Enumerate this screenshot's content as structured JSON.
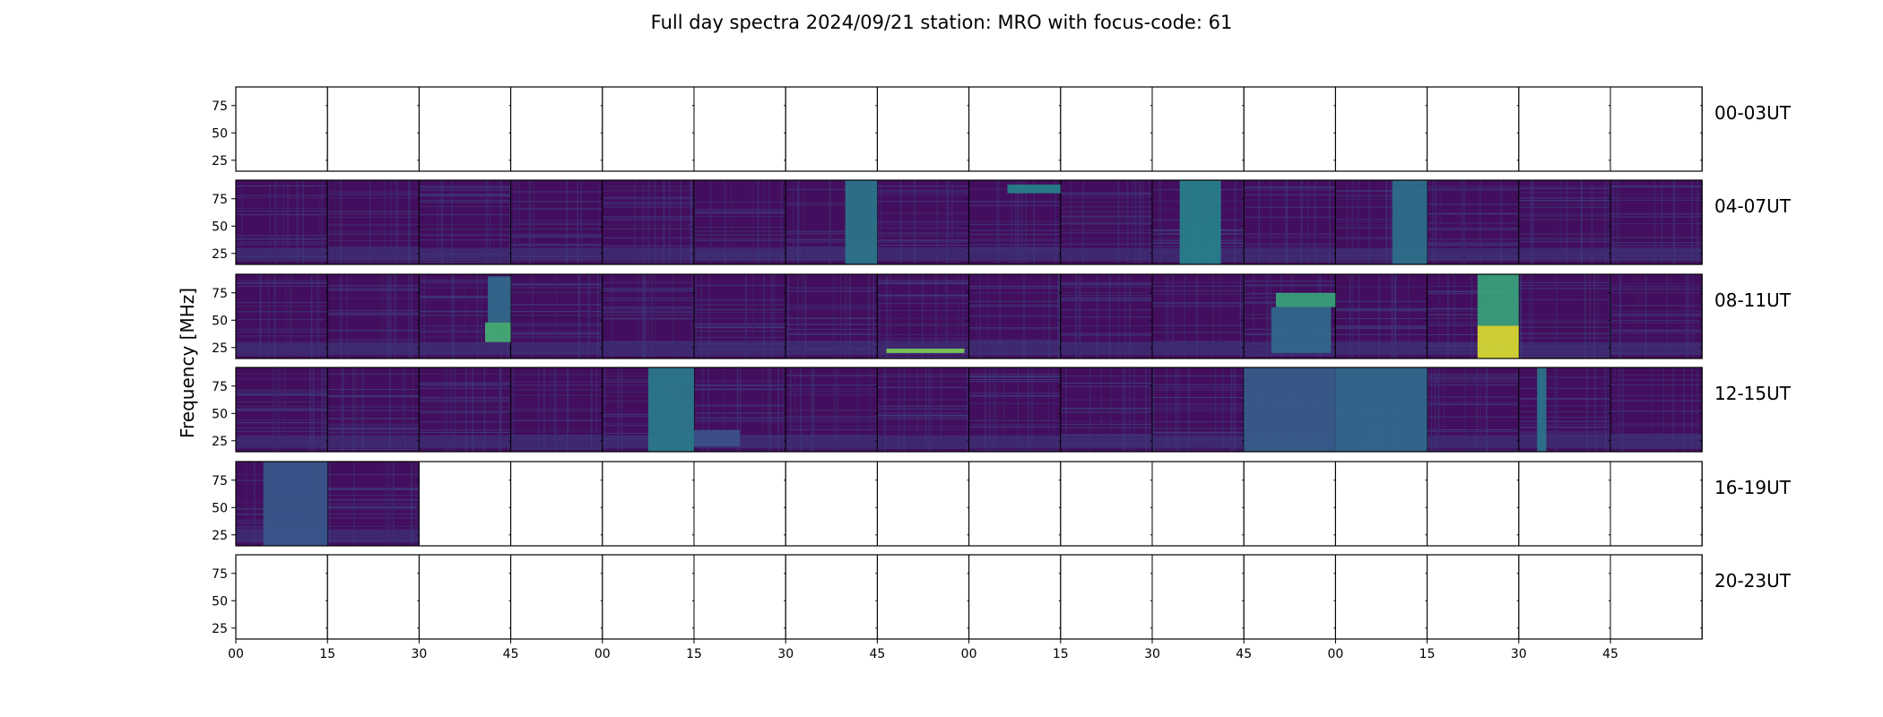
{
  "chart_data": {
    "type": "heatmap",
    "title": "Full day spectra 2024/09/21 station: MRO with focus-code: 61",
    "ylabel": "Frequency [MHz]",
    "yticks": [
      "25",
      "50",
      "75"
    ],
    "ylim": [
      15,
      92
    ],
    "xticks": [
      "00",
      "15",
      "30",
      "45",
      "00",
      "15",
      "30",
      "45",
      "00",
      "15",
      "30",
      "45",
      "00",
      "15",
      "30",
      "45"
    ],
    "panels_per_row": 16,
    "colormap": [
      "#440154",
      "#3b528b",
      "#21908d",
      "#5dc863",
      "#fde725"
    ],
    "rows": [
      {
        "label": "00-03UT",
        "panels": [
          0,
          0,
          0,
          0,
          0,
          0,
          0,
          0,
          0,
          0,
          0,
          0,
          0,
          0,
          0,
          0
        ],
        "features": []
      },
      {
        "label": "04-07UT",
        "panels": [
          1,
          1,
          1,
          1,
          1,
          1,
          1,
          1,
          1,
          1,
          1,
          1,
          1,
          1,
          1,
          1
        ],
        "features": [
          {
            "panel": 6,
            "x0": 0.65,
            "x1": 1.0,
            "y0": 15,
            "y1": 92,
            "level": 0.4
          },
          {
            "panel": 8,
            "x0": 0.42,
            "x1": 1.0,
            "y0": 80,
            "y1": 88,
            "level": 0.45
          },
          {
            "panel": 10,
            "x0": 0.3,
            "x1": 0.75,
            "y0": 15,
            "y1": 92,
            "level": 0.45
          },
          {
            "panel": 12,
            "x0": 0.62,
            "x1": 1.0,
            "y0": 15,
            "y1": 92,
            "level": 0.38
          }
        ]
      },
      {
        "label": "08-11UT",
        "panels": [
          1,
          1,
          1,
          1,
          1,
          1,
          1,
          1,
          1,
          1,
          1,
          1,
          1,
          1,
          1,
          1
        ],
        "features": [
          {
            "panel": 2,
            "x0": 0.72,
            "x1": 1.0,
            "y0": 30,
            "y1": 48,
            "level": 0.65
          },
          {
            "panel": 2,
            "x0": 0.75,
            "x1": 1.0,
            "y0": 48,
            "y1": 90,
            "level": 0.35
          },
          {
            "panel": 7,
            "x0": 0.1,
            "x1": 0.95,
            "y0": 20,
            "y1": 24,
            "level": 0.8
          },
          {
            "panel": 11,
            "x0": 0.35,
            "x1": 1.0,
            "y0": 62,
            "y1": 75,
            "level": 0.6
          },
          {
            "panel": 11,
            "x0": 0.3,
            "x1": 0.95,
            "y0": 20,
            "y1": 62,
            "level": 0.35
          },
          {
            "panel": 13,
            "x0": 0.55,
            "x1": 1.0,
            "y0": 15,
            "y1": 45,
            "level": 0.95
          },
          {
            "panel": 13,
            "x0": 0.55,
            "x1": 1.0,
            "y0": 45,
            "y1": 92,
            "level": 0.6
          }
        ]
      },
      {
        "label": "12-15UT",
        "panels": [
          1,
          1,
          1,
          1,
          1,
          1,
          1,
          1,
          1,
          1,
          1,
          1,
          1,
          1,
          1,
          1
        ],
        "features": [
          {
            "panel": 4,
            "x0": 0.5,
            "x1": 1.0,
            "y0": 15,
            "y1": 92,
            "level": 0.42
          },
          {
            "panel": 5,
            "x0": 0.0,
            "x1": 0.5,
            "y0": 20,
            "y1": 35,
            "level": 0.25
          },
          {
            "panel": 11,
            "x0": 0.0,
            "x1": 1.0,
            "y0": 15,
            "y1": 92,
            "level": 0.3
          },
          {
            "panel": 12,
            "x0": 0.0,
            "x1": 1.0,
            "y0": 15,
            "y1": 92,
            "level": 0.35
          },
          {
            "panel": 14,
            "x0": 0.2,
            "x1": 0.3,
            "y0": 15,
            "y1": 92,
            "level": 0.4
          }
        ]
      },
      {
        "label": "16-19UT",
        "panels": [
          1,
          1,
          0,
          0,
          0,
          0,
          0,
          0,
          0,
          0,
          0,
          0,
          0,
          0,
          0,
          0
        ],
        "features": [
          {
            "panel": 0,
            "x0": 0.3,
            "x1": 1.0,
            "y0": 15,
            "y1": 92,
            "level": 0.28
          }
        ]
      },
      {
        "label": "20-23UT",
        "panels": [
          0,
          0,
          0,
          0,
          0,
          0,
          0,
          0,
          0,
          0,
          0,
          0,
          0,
          0,
          0,
          0
        ],
        "features": []
      }
    ]
  }
}
